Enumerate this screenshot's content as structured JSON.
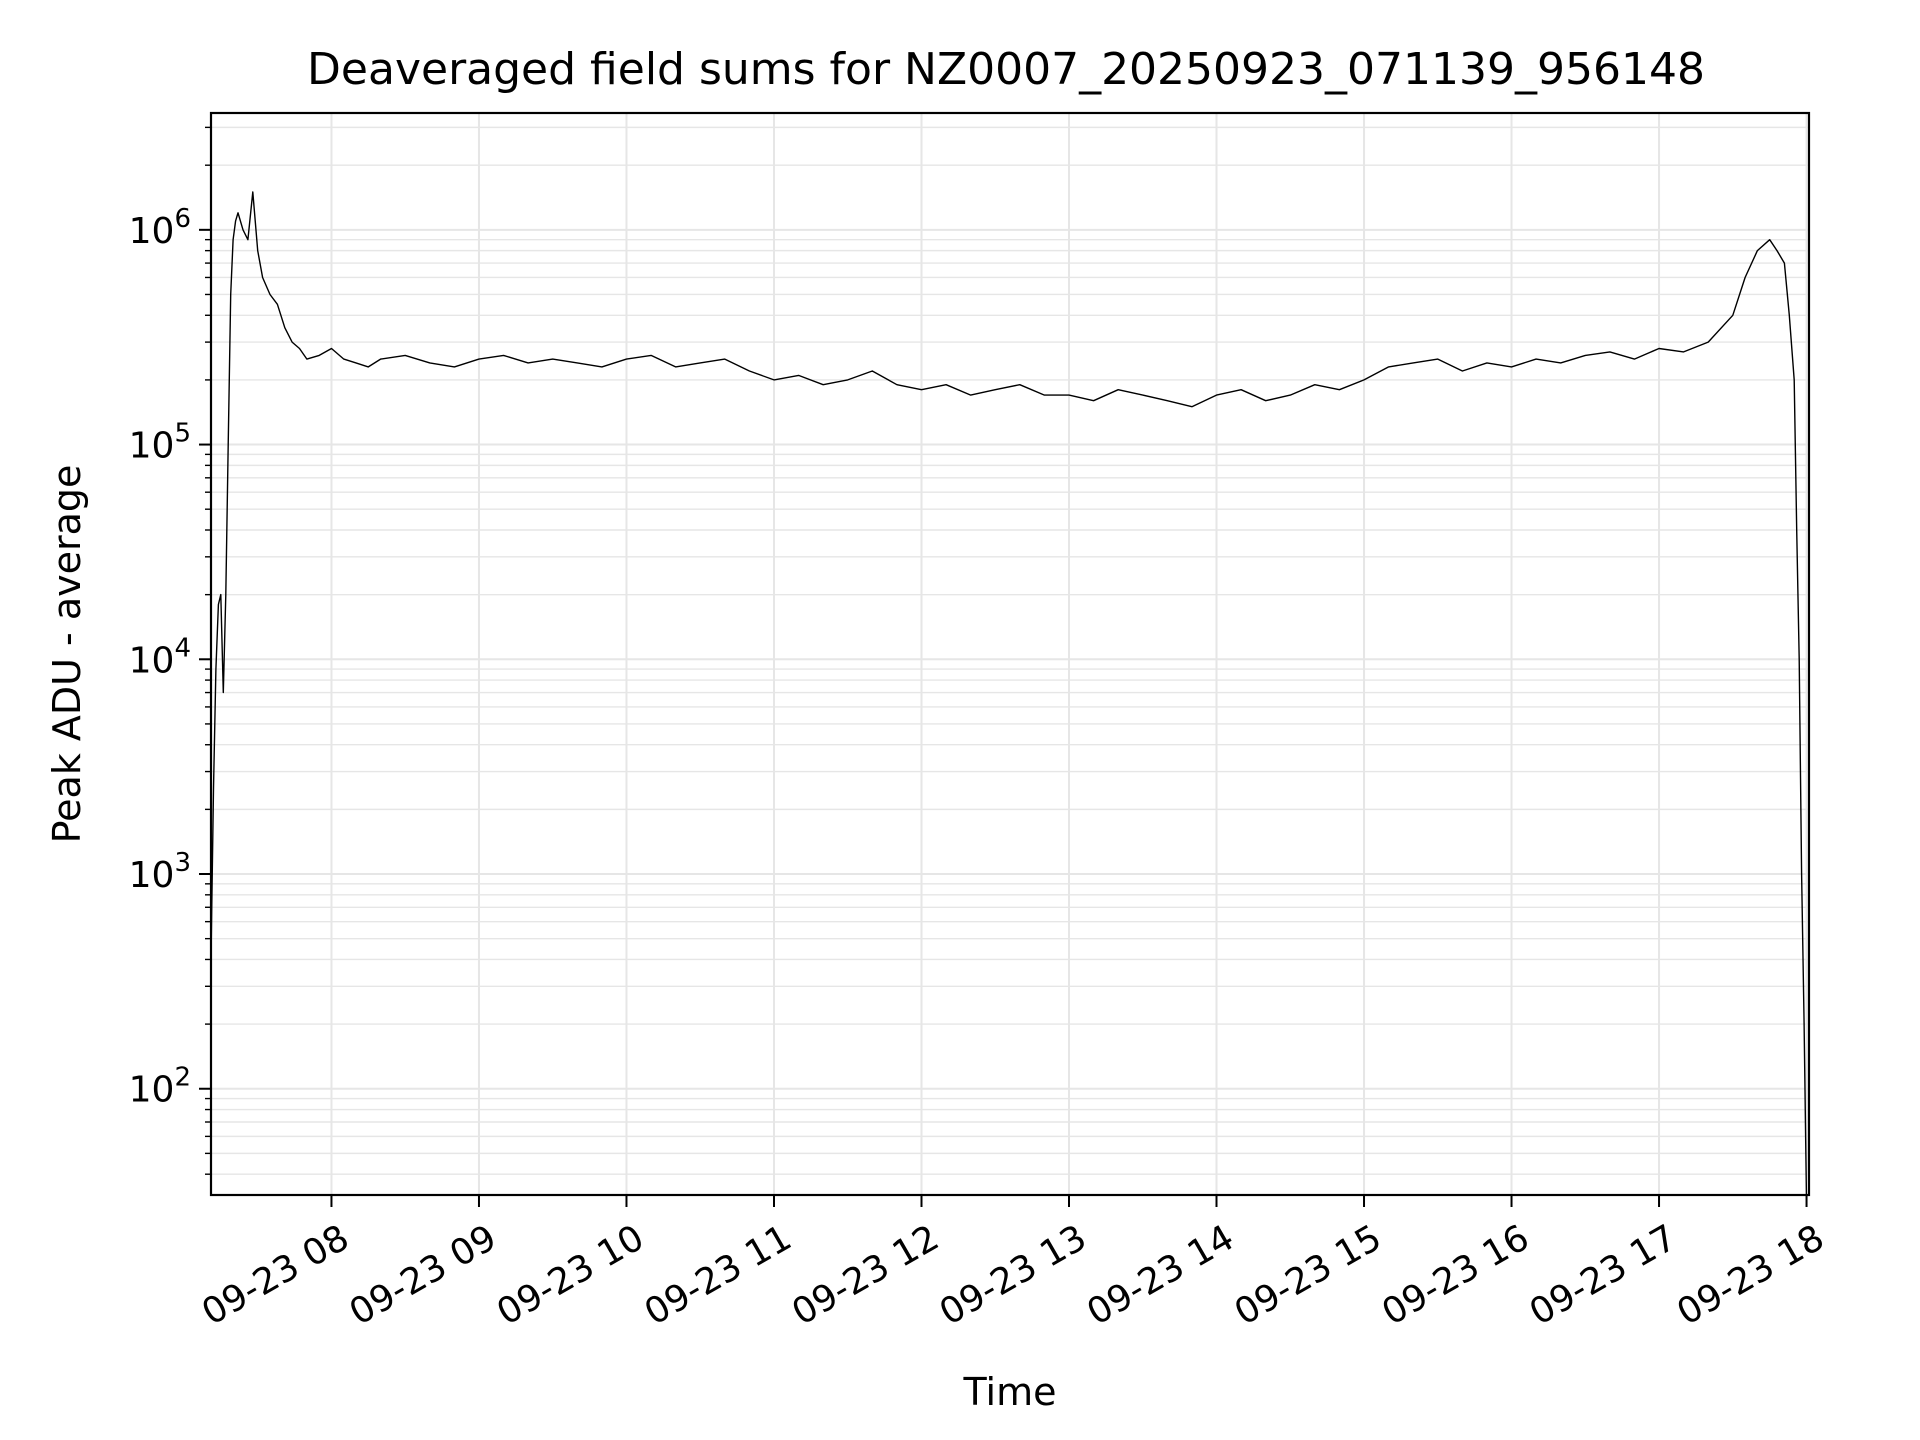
{
  "chart_data": {
    "type": "line",
    "title": "Deaveraged field sums for NZ0007_20250923_071139_956148",
    "xlabel": "Time",
    "ylabel": "Peak ADU - average",
    "yscale": "log",
    "ylim": [
      32,
      3500000
    ],
    "xlim": [
      "09-23 07:11",
      "09-23 18:01"
    ],
    "grid": true,
    "line_color": "#000000",
    "grid_color": "#e6e6e6",
    "x_ticks": [
      "09-23 08",
      "09-23 09",
      "09-23 10",
      "09-23 11",
      "09-23 12",
      "09-23 13",
      "09-23 14",
      "09-23 15",
      "09-23 16",
      "09-23 17",
      "09-23 18"
    ],
    "y_ticks": [
      {
        "value": 100,
        "base": "10",
        "exp": "2"
      },
      {
        "value": 1000,
        "base": "10",
        "exp": "3"
      },
      {
        "value": 10000,
        "base": "10",
        "exp": "4"
      },
      {
        "value": 100000,
        "base": "10",
        "exp": "5"
      },
      {
        "value": 1000000,
        "base": "10",
        "exp": "6"
      }
    ],
    "series": [
      {
        "x": [
          "09-23 07:11",
          "09-23 07:12",
          "09-23 07:13",
          "09-23 07:14",
          "09-23 07:15",
          "09-23 07:16",
          "09-23 07:17",
          "09-23 07:18",
          "09-23 07:19",
          "09-23 07:20",
          "09-23 07:21",
          "09-23 07:22",
          "09-23 07:24",
          "09-23 07:26",
          "09-23 07:28",
          "09-23 07:30",
          "09-23 07:32",
          "09-23 07:35",
          "09-23 07:38",
          "09-23 07:41",
          "09-23 07:44",
          "09-23 07:47",
          "09-23 07:50",
          "09-23 07:55",
          "09-23 08:00",
          "09-23 08:05",
          "09-23 08:10",
          "09-23 08:15",
          "09-23 08:20",
          "09-23 08:30",
          "09-23 08:40",
          "09-23 08:50",
          "09-23 09:00",
          "09-23 09:10",
          "09-23 09:20",
          "09-23 09:30",
          "09-23 09:40",
          "09-23 09:50",
          "09-23 10:00",
          "09-23 10:10",
          "09-23 10:20",
          "09-23 10:30",
          "09-23 10:40",
          "09-23 10:50",
          "09-23 11:00",
          "09-23 11:10",
          "09-23 11:20",
          "09-23 11:30",
          "09-23 11:40",
          "09-23 11:50",
          "09-23 12:00",
          "09-23 12:10",
          "09-23 12:20",
          "09-23 12:30",
          "09-23 12:40",
          "09-23 12:50",
          "09-23 13:00",
          "09-23 13:10",
          "09-23 13:20",
          "09-23 13:30",
          "09-23 13:40",
          "09-23 13:50",
          "09-23 14:00",
          "09-23 14:10",
          "09-23 14:20",
          "09-23 14:30",
          "09-23 14:40",
          "09-23 14:50",
          "09-23 15:00",
          "09-23 15:10",
          "09-23 15:20",
          "09-23 15:30",
          "09-23 15:40",
          "09-23 15:50",
          "09-23 16:00",
          "09-23 16:10",
          "09-23 16:20",
          "09-23 16:30",
          "09-23 16:40",
          "09-23 16:50",
          "09-23 17:00",
          "09-23 17:10",
          "09-23 17:20",
          "09-23 17:30",
          "09-23 17:35",
          "09-23 17:40",
          "09-23 17:45",
          "09-23 17:48",
          "09-23 17:51",
          "09-23 17:53",
          "09-23 17:55",
          "09-23 17:56",
          "09-23 17:57",
          "09-23 17:58",
          "09-23 17:59",
          "09-23 18:00"
        ],
        "y": [
          400,
          2500,
          9000,
          18000,
          20000,
          7000,
          20000,
          100000,
          500000,
          900000,
          1100000,
          1200000,
          1000000,
          900000,
          1500000,
          800000,
          600000,
          500000,
          450000,
          350000,
          300000,
          280000,
          250000,
          260000,
          280000,
          250000,
          240000,
          230000,
          250000,
          260000,
          240000,
          230000,
          250000,
          260000,
          240000,
          250000,
          240000,
          230000,
          250000,
          260000,
          230000,
          240000,
          250000,
          220000,
          200000,
          210000,
          190000,
          200000,
          220000,
          190000,
          180000,
          190000,
          170000,
          180000,
          190000,
          170000,
          170000,
          160000,
          180000,
          170000,
          160000,
          150000,
          170000,
          180000,
          160000,
          170000,
          190000,
          180000,
          200000,
          230000,
          240000,
          250000,
          220000,
          240000,
          230000,
          250000,
          240000,
          260000,
          270000,
          250000,
          280000,
          270000,
          300000,
          400000,
          600000,
          800000,
          900000,
          800000,
          700000,
          400000,
          200000,
          40000,
          10000,
          1000,
          200,
          30
        ]
      }
    ]
  }
}
